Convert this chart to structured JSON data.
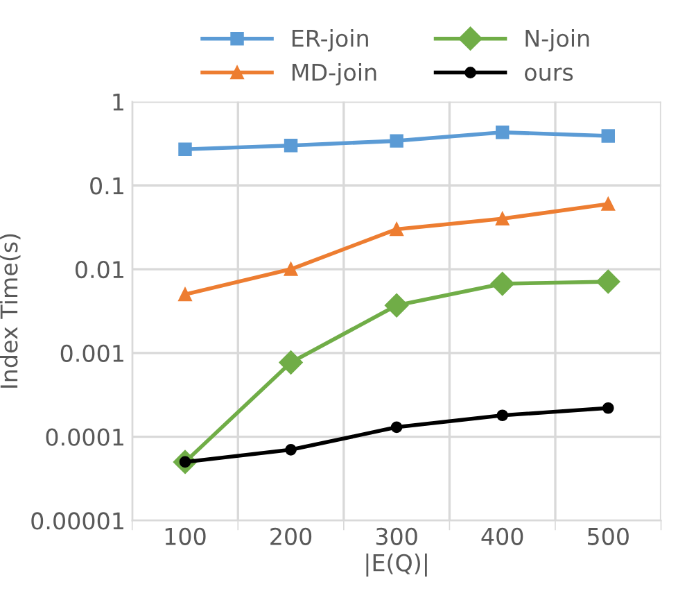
{
  "chart_data": {
    "type": "line",
    "xlabel": "|E(Q)|",
    "ylabel": "Index Time(s)",
    "categories": [
      "100",
      "200",
      "300",
      "400",
      "500"
    ],
    "series": [
      {
        "name": "ER-join",
        "color": "#5b9bd5",
        "marker": "square",
        "values": [
          0.27,
          0.3,
          0.34,
          0.43,
          0.39
        ]
      },
      {
        "name": "MD-join",
        "color": "#ed7d31",
        "marker": "triangle",
        "values": [
          0.005,
          0.01,
          0.03,
          0.04,
          0.06
        ]
      },
      {
        "name": "N-join",
        "color": "#70ad47",
        "marker": "diamond",
        "values": [
          5e-05,
          0.00077,
          0.0037,
          0.0067,
          0.0071
        ]
      },
      {
        "name": "ours",
        "color": "#000000",
        "marker": "circle",
        "values": [
          5e-05,
          7e-05,
          0.00013,
          0.00018,
          0.00022
        ]
      }
    ],
    "log": "y",
    "ylim": [
      1e-05,
      1
    ],
    "yticks": [
      {
        "value": 1e-05,
        "label": "0.00001"
      },
      {
        "value": 0.0001,
        "label": "0.0001"
      },
      {
        "value": 0.001,
        "label": "0.001"
      },
      {
        "value": 0.01,
        "label": "0.01"
      },
      {
        "value": 0.1,
        "label": "0.1"
      },
      {
        "value": 1,
        "label": "1"
      }
    ],
    "grid": true,
    "legend": "top",
    "line_style": "solid"
  }
}
